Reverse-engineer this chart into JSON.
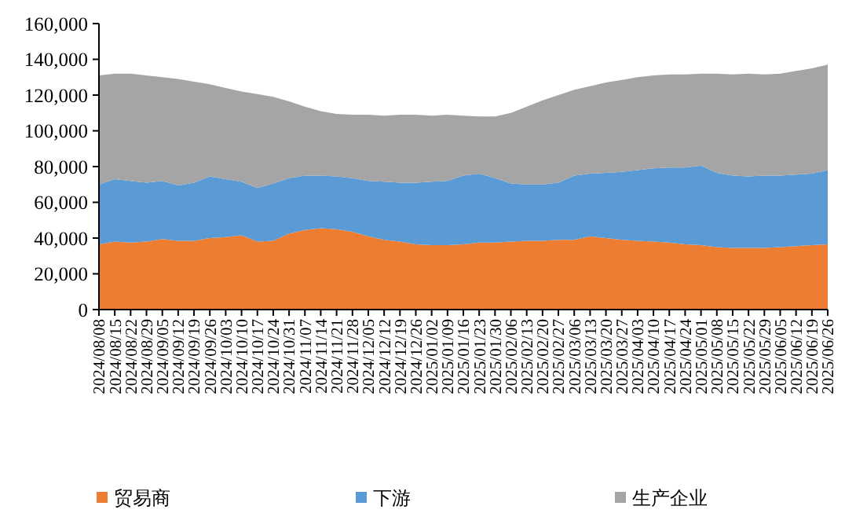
{
  "chart_data": {
    "type": "area",
    "stacked": true,
    "categories": [
      "2024/08/08",
      "2024/08/15",
      "2024/08/22",
      "2024/08/29",
      "2024/09/05",
      "2024/09/12",
      "2024/09/19",
      "2024/09/26",
      "2024/10/03",
      "2024/10/10",
      "2024/10/17",
      "2024/10/24",
      "2024/10/31",
      "2024/11/07",
      "2024/11/14",
      "2024/11/21",
      "2024/11/28",
      "2024/12/05",
      "2024/12/12",
      "2024/12/19",
      "2024/12/26",
      "2025/01/02",
      "2025/01/09",
      "2025/01/16",
      "2025/01/23",
      "2025/01/30",
      "2025/02/06",
      "2025/02/13",
      "2025/02/20",
      "2025/02/27",
      "2025/03/06",
      "2025/03/13",
      "2025/03/20",
      "2025/03/27",
      "2025/04/03",
      "2025/04/10",
      "2025/04/17",
      "2025/04/24",
      "2025/05/01",
      "2025/05/08",
      "2025/05/15",
      "2025/05/22",
      "2025/05/29",
      "2025/06/05",
      "2025/06/12",
      "2025/06/19",
      "2025/06/26"
    ],
    "series": [
      {
        "name": "贸易商",
        "color": "#ed7d31",
        "values": [
          36500,
          38000,
          37500,
          38000,
          39500,
          38500,
          38500,
          40000,
          40500,
          41500,
          38000,
          38500,
          42500,
          44500,
          45500,
          45000,
          43500,
          41000,
          39000,
          38000,
          36500,
          36000,
          36000,
          36500,
          37500,
          37500,
          38000,
          38500,
          38500,
          39000,
          39000,
          41000,
          40000,
          39000,
          38500,
          38000,
          37500,
          36500,
          36000,
          35000,
          34500,
          34500,
          34500,
          35000,
          35500,
          36000,
          36500
        ]
      },
      {
        "name": "下游",
        "color": "#5b9bd5",
        "values": [
          33500,
          35000,
          34500,
          33000,
          32500,
          31000,
          32500,
          34500,
          32500,
          30000,
          30000,
          32000,
          31000,
          30500,
          29500,
          29500,
          30000,
          31000,
          32500,
          33000,
          34500,
          35500,
          36000,
          38500,
          38500,
          36000,
          32500,
          31500,
          31500,
          32000,
          36000,
          35000,
          36500,
          38000,
          39500,
          41000,
          42000,
          43000,
          44500,
          41500,
          40500,
          40000,
          40500,
          40000,
          40000,
          40000,
          41500
        ]
      },
      {
        "name": "生产企业",
        "color": "#a5a5a5",
        "values": [
          61000,
          59000,
          60000,
          60000,
          58000,
          59500,
          56500,
          51500,
          51000,
          50500,
          52500,
          48500,
          43000,
          38500,
          36000,
          35000,
          35500,
          37000,
          37000,
          38000,
          38000,
          37000,
          37000,
          33500,
          32000,
          34500,
          39500,
          43500,
          47000,
          49000,
          48000,
          49000,
          50500,
          51500,
          52000,
          52000,
          52000,
          52000,
          51500,
          55500,
          56500,
          57500,
          56500,
          57000,
          58000,
          59000,
          59000
        ]
      }
    ],
    "ylim": [
      0,
      160000
    ],
    "yticks": [
      {
        "value": 0,
        "label": "0"
      },
      {
        "value": 20000,
        "label": "20,000"
      },
      {
        "value": 40000,
        "label": "40,000"
      },
      {
        "value": 60000,
        "label": "60,000"
      },
      {
        "value": 80000,
        "label": "80,000"
      },
      {
        "value": 100000,
        "label": "100,000"
      },
      {
        "value": 120000,
        "label": "120,000"
      },
      {
        "value": 140000,
        "label": "140,000"
      },
      {
        "value": 160000,
        "label": "160,000"
      }
    ],
    "legend": "bottom"
  }
}
